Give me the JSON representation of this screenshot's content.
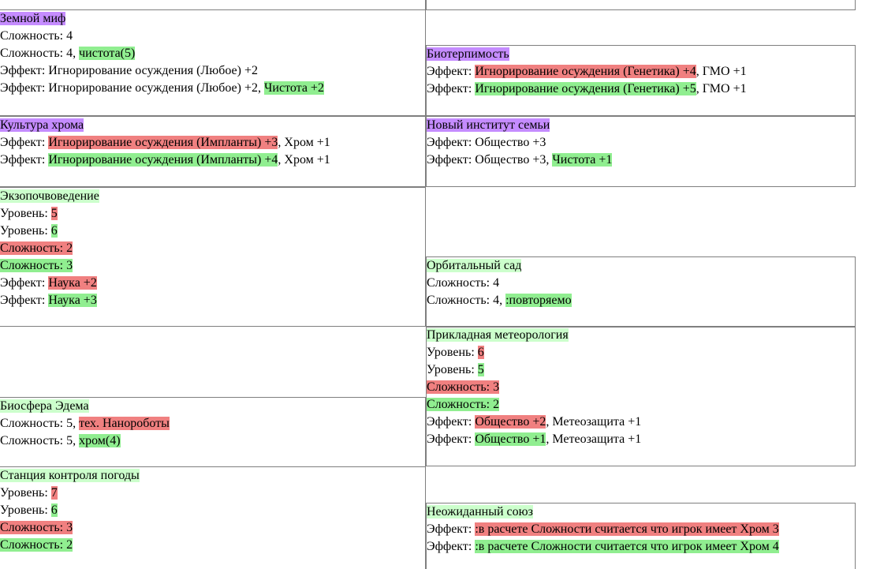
{
  "colors": {
    "removed": "#f08080",
    "added": "#90ee90",
    "title_changed": "#c58cff",
    "title_new": "#ccffcc"
  },
  "cards": {
    "zemnoy": {
      "title": "Земной миф",
      "l1": "Сложность: 4",
      "l2_a": "Сложность: 4, ",
      "l2_b": "чистота(5)",
      "l3": "Эффект: Игнорирование осуждения (Любое) +2",
      "l4_a": "Эффект: Игнорирование осуждения (Любое) +2, ",
      "l4_b": "Чистота +2"
    },
    "bioterp": {
      "title": "Биотерпимость",
      "l1_a": "Эффект: ",
      "l1_b": "Игнорирование осуждения (Генетика) +4",
      "l1_c": ", ГМО +1",
      "l2_a": "Эффект: ",
      "l2_b": "Игнорирование осуждения (Генетика) +5",
      "l2_c": ", ГМО +1"
    },
    "kultura": {
      "title": "Культура хрома",
      "l1_a": "Эффект: ",
      "l1_b": "Игнорирование осуждения (Импланты) +3",
      "l1_c": ", Хром +1",
      "l2_a": "Эффект: ",
      "l2_b": "Игнорирование осуждения (Импланты) +4",
      "l2_c": ", Хром +1"
    },
    "institut": {
      "title": "Новый институт семьи",
      "l1": "Эффект: Общество +3",
      "l2_a": "Эффект: Общество +3, ",
      "l2_b": "Чистота +1"
    },
    "ekzo": {
      "title": "Экзопочвоведение",
      "l1_a": "Уровень: ",
      "l1_b": "5",
      "l2_a": "Уровень: ",
      "l2_b": "6",
      "l3": "Сложность: 2",
      "l4": "Сложность: 3",
      "l5_a": "Эффект: ",
      "l5_b": "Наука +2",
      "l6_a": "Эффект: ",
      "l6_b": "Наука +3"
    },
    "orbit": {
      "title": "Орбитальный сад",
      "l1": "Сложность: 4",
      "l2_a": "Сложность: 4, ",
      "l2_b": ":повторяемо"
    },
    "meteo": {
      "title": "Прикладная метеорология",
      "l1_a": "Уровень: ",
      "l1_b": "6",
      "l2_a": "Уровень: ",
      "l2_b": "5",
      "l3": "Сложность: 3",
      "l4": "Сложность: 2",
      "l5_a": "Эффект: ",
      "l5_b": "Общество +2",
      "l5_c": ", Метеозащита +1",
      "l6_a": "Эффект: ",
      "l6_b": "Общество +1",
      "l6_c": ", Метеозащита +1"
    },
    "biosfera": {
      "title": "Биосфера Эдема",
      "l1_a": "Сложность: 5, ",
      "l1_b": "тех. Нанороботы",
      "l2_a": "Сложность: 5, ",
      "l2_b": "хром(4)"
    },
    "stanciya": {
      "title": "Станция контроля погоды",
      "l1_a": "Уровень: ",
      "l1_b": "7",
      "l2_a": "Уровень: ",
      "l2_b": "6",
      "l3": "Сложность: 3",
      "l4": "Сложность: 2"
    },
    "soyuz": {
      "title": "Неожиданный союз",
      "l1_a": "Эффект: ",
      "l1_b": ":в расчете Сложности считается что игрок имеет Хром 3",
      "l2_a": "Эффект: ",
      "l2_b": ":в расчете Сложности считается что игрок имеет Хром 4"
    }
  }
}
